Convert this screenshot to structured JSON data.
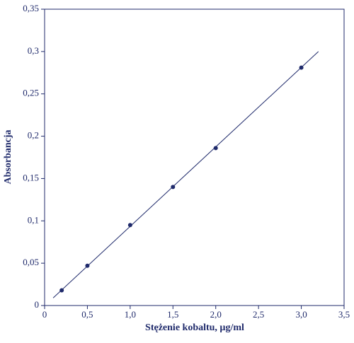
{
  "chart_data": {
    "type": "scatter",
    "x_label": "Stężenie kobaltu, µg/ml",
    "y_label": "Absorbancja",
    "color": "#1f2a6b",
    "xlim": [
      0,
      3.5
    ],
    "ylim": [
      0,
      0.35
    ],
    "xticks": [
      0,
      {
        "value": 0.5,
        "label": "0,5"
      },
      {
        "value": 1,
        "label": "1,0"
      },
      {
        "value": 1.5,
        "label": "1,5"
      },
      {
        "value": 2,
        "label": "2,0"
      },
      {
        "value": 2.5,
        "label": "2,5"
      },
      {
        "value": 3,
        "label": "3,0"
      },
      {
        "value": 3.5,
        "label": "3,5"
      }
    ],
    "yticks": [
      0,
      {
        "value": 0.05,
        "label": "0,05"
      },
      {
        "value": 0.1,
        "label": "0,1"
      },
      {
        "value": 0.15,
        "label": "0,15"
      },
      {
        "value": 0.2,
        "label": "0,2"
      },
      {
        "value": 0.25,
        "label": "0,25"
      },
      {
        "value": 0.3,
        "label": "0,3"
      },
      {
        "value": 0.35,
        "label": "0,35"
      }
    ],
    "x": [
      0.2,
      0.5,
      1.0,
      1.5,
      2.0,
      3.0
    ],
    "values": [
      0.018,
      0.047,
      0.095,
      0.14,
      0.186,
      0.281
    ],
    "fit_line": {
      "x": [
        0.1,
        3.2
      ],
      "values": [
        0.009,
        0.3
      ]
    }
  }
}
